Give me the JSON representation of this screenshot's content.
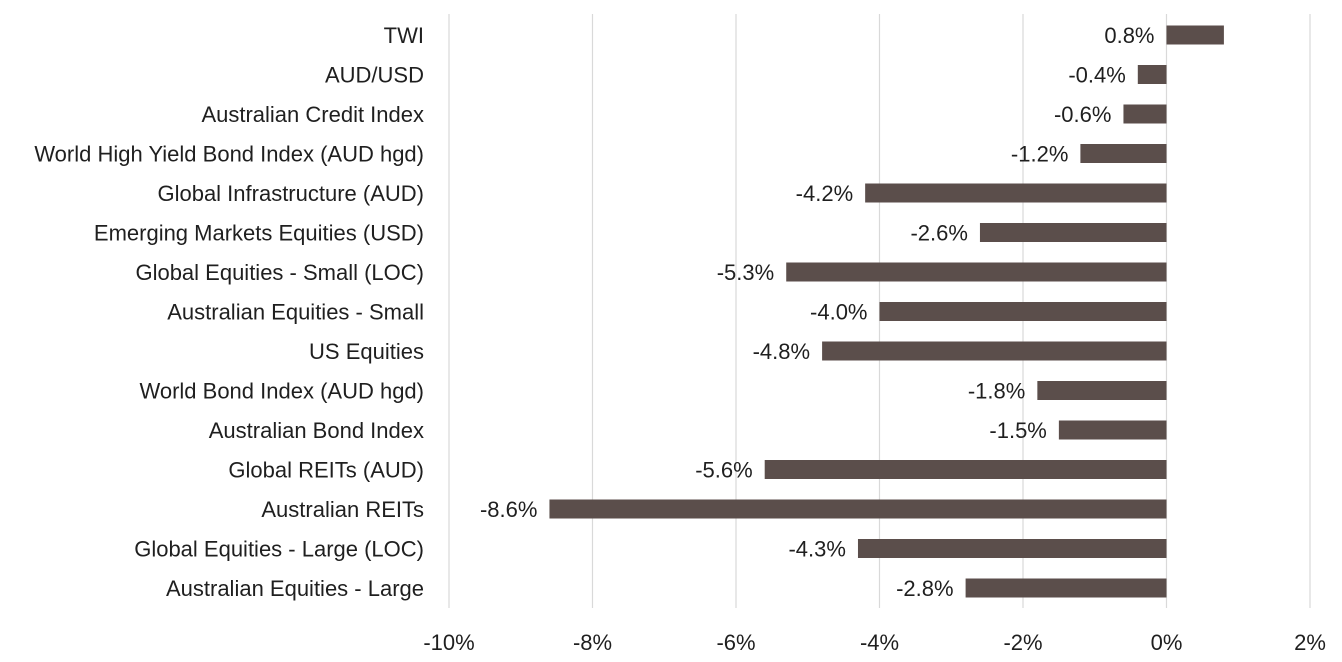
{
  "chart_data": {
    "type": "bar",
    "orientation": "horizontal",
    "categories": [
      "TWI",
      "AUD/USD",
      "Australian Credit Index",
      "World High Yield Bond Index (AUD hgd)",
      "Global Infrastructure (AUD)",
      "Emerging Markets Equities (USD)",
      "Global Equities - Small (LOC)",
      "Australian Equities - Small",
      "US Equities",
      "World Bond Index (AUD hgd)",
      "Australian Bond Index",
      "Global REITs (AUD)",
      "Australian REITs",
      "Global Equities - Large (LOC)",
      "Australian Equities - Large"
    ],
    "values": [
      0.8,
      -0.4,
      -0.6,
      -1.2,
      -4.2,
      -2.6,
      -5.3,
      -4.0,
      -4.8,
      -1.8,
      -1.5,
      -5.6,
      -8.6,
      -4.3,
      -2.8
    ],
    "data_labels": [
      "0.8%",
      "-0.4%",
      "-0.6%",
      "-1.2%",
      "-4.2%",
      "-2.6%",
      "-5.3%",
      "-4.0%",
      "-4.8%",
      "-1.8%",
      "-1.5%",
      "-5.6%",
      "-8.6%",
      "-4.3%",
      "-2.8%"
    ],
    "x_ticks": [
      -10,
      -8,
      -6,
      -4,
      -2,
      0,
      2
    ],
    "x_tick_labels": [
      "-10%",
      "-8%",
      "-6%",
      "-4%",
      "-2%",
      "0%",
      "2%"
    ],
    "xlim": [
      -10,
      2
    ],
    "title": "",
    "xlabel": "",
    "ylabel": "",
    "grid": "vertical",
    "legend": "none",
    "bar_color": "#5b4e4b",
    "grid_color": "#d9d9d9",
    "text_color": "#1f1f1f"
  }
}
